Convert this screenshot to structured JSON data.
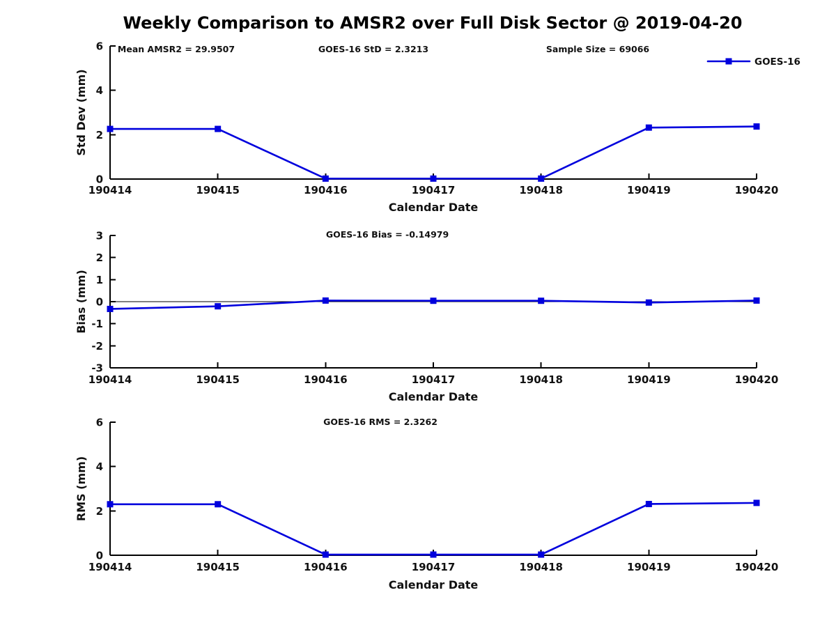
{
  "page": {
    "title": "Weekly Comparison to AMSR2 over Full Disk Sector @ 2019-04-20"
  },
  "stats": {
    "mean_amsr2": 29.9507,
    "goes16_std": 2.3213,
    "sample_size": 69066,
    "goes16_bias": -0.14979,
    "goes16_rms": 2.3262
  },
  "series_color": "#0000dd",
  "chart_data": [
    {
      "type": "line",
      "name": "stddev",
      "categories": [
        "190414",
        "190415",
        "190416",
        "190417",
        "190418",
        "190419",
        "190420"
      ],
      "series": [
        {
          "name": "GOES-16",
          "values": [
            2.26,
            2.26,
            0.02,
            0.02,
            0.02,
            2.32,
            2.37
          ]
        }
      ],
      "xlabel": "Calendar Date",
      "ylabel": "Std Dev (mm)",
      "ylim": [
        0,
        6
      ],
      "yticks": [
        0,
        2,
        4,
        6
      ],
      "grid": false,
      "zero_line": false,
      "annotations": [
        "Mean AMSR2 = 29.9507",
        "GOES-16 StD = 2.3213",
        "Sample Size = 69066"
      ],
      "legend": {
        "label": "GOES-16",
        "position": "top-right"
      }
    },
    {
      "type": "line",
      "name": "bias",
      "categories": [
        "190414",
        "190415",
        "190416",
        "190417",
        "190418",
        "190419",
        "190420"
      ],
      "series": [
        {
          "name": "GOES-16",
          "values": [
            -0.33,
            -0.21,
            0.05,
            0.04,
            0.04,
            -0.04,
            0.05
          ]
        }
      ],
      "xlabel": "Calendar Date",
      "ylabel": "Bias (mm)",
      "ylim": [
        -3,
        3
      ],
      "yticks": [
        -3,
        -2,
        -1,
        0,
        1,
        2,
        3
      ],
      "grid": false,
      "zero_line": true,
      "annotations": [
        "GOES-16 Bias  = -0.14979"
      ],
      "legend": null
    },
    {
      "type": "line",
      "name": "rms",
      "categories": [
        "190414",
        "190415",
        "190416",
        "190417",
        "190418",
        "190419",
        "190420"
      ],
      "series": [
        {
          "name": "GOES-16",
          "values": [
            2.3,
            2.3,
            0.03,
            0.03,
            0.03,
            2.31,
            2.36
          ]
        }
      ],
      "xlabel": "Calendar Date",
      "ylabel": "RMS (mm)",
      "ylim": [
        0,
        6
      ],
      "yticks": [
        0,
        2,
        4,
        6
      ],
      "grid": false,
      "zero_line": false,
      "annotations": [
        "GOES-16 RMS = 2.3262"
      ],
      "legend": null
    }
  ]
}
